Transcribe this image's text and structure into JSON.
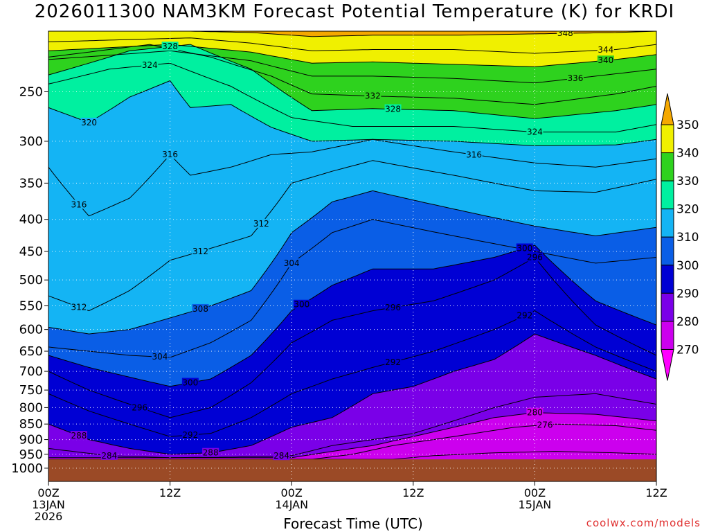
{
  "title": "2026011300 NAM3KM Forecast Potential Temperature (K) for KRDI",
  "xlabel": "Forecast Time (UTC)",
  "credit": "coolwx.com/models",
  "chart_data": {
    "type": "heatmap",
    "title": "2026011300 NAM3KM Forecast Potential Temperature (K) for KRDI",
    "xlabel": "Forecast Time (UTC)",
    "ylabel": "",
    "x_ticks": [
      {
        "hour": 0,
        "lines": [
          "00Z",
          "13JAN",
          "2026"
        ]
      },
      {
        "hour": 12,
        "lines": [
          "12Z"
        ]
      },
      {
        "hour": 24,
        "lines": [
          "00Z",
          "14JAN"
        ]
      },
      {
        "hour": 36,
        "lines": [
          "12Z"
        ]
      },
      {
        "hour": 48,
        "lines": [
          "00Z",
          "15JAN"
        ]
      },
      {
        "hour": 60,
        "lines": [
          "12Z"
        ]
      }
    ],
    "xlim": [
      0,
      60
    ],
    "y_ticks": [
      250,
      300,
      350,
      400,
      450,
      500,
      550,
      600,
      650,
      700,
      750,
      800,
      850,
      900,
      950,
      1000
    ],
    "ylim": [
      200,
      1050
    ],
    "y_scale": "log",
    "y_reversed": true,
    "grid": true,
    "colorbar": {
      "levels": [
        270,
        280,
        290,
        300,
        310,
        320,
        330,
        340,
        350
      ],
      "colors": [
        "#ff00ff",
        "#cc00ee",
        "#7a00e8",
        "#0000d4",
        "#0a5ee6",
        "#14b4f4",
        "#00f0a0",
        "#2ed21e",
        "#f0f000",
        "#f5a800"
      ]
    },
    "contour_labels": [
      "348",
      "344",
      "340",
      "336",
      "332",
      "328",
      "328",
      "324",
      "324",
      "320",
      "316",
      "316",
      "316",
      "312",
      "312",
      "312",
      "308",
      "304",
      "304",
      "300",
      "300",
      "300",
      "296",
      "296",
      "296",
      "292",
      "292",
      "292",
      "288",
      "288",
      "284",
      "284",
      "280",
      "276"
    ],
    "surface_pressure_hpa": 968,
    "series": [
      {
        "level": 348,
        "values": [
          {
            "hour": 0,
            "p": 200
          },
          {
            "hour": 14,
            "p": 200
          },
          {
            "hour": 20,
            "p": 201
          },
          {
            "hour": 26,
            "p": 204
          },
          {
            "hour": 32,
            "p": 203
          },
          {
            "hour": 40,
            "p": 203
          },
          {
            "hour": 48,
            "p": 202
          },
          {
            "hour": 56,
            "p": 201
          },
          {
            "hour": 60,
            "p": 200
          }
        ]
      },
      {
        "level": 344,
        "values": [
          {
            "hour": 0,
            "p": 208
          },
          {
            "hour": 14,
            "p": 205
          },
          {
            "hour": 20,
            "p": 209
          },
          {
            "hour": 26,
            "p": 215
          },
          {
            "hour": 32,
            "p": 214
          },
          {
            "hour": 40,
            "p": 214
          },
          {
            "hour": 48,
            "p": 217
          },
          {
            "hour": 56,
            "p": 214
          },
          {
            "hour": 60,
            "p": 210
          }
        ]
      },
      {
        "level": 340,
        "values": [
          {
            "hour": 0,
            "p": 215
          },
          {
            "hour": 12,
            "p": 210
          },
          {
            "hour": 20,
            "p": 216
          },
          {
            "hour": 26,
            "p": 225
          },
          {
            "hour": 32,
            "p": 224
          },
          {
            "hour": 40,
            "p": 226
          },
          {
            "hour": 48,
            "p": 228
          },
          {
            "hour": 56,
            "p": 222
          },
          {
            "hour": 60,
            "p": 218
          }
        ]
      },
      {
        "level": 336,
        "values": [
          {
            "hour": 0,
            "p": 222
          },
          {
            "hour": 12,
            "p": 215
          },
          {
            "hour": 20,
            "p": 223
          },
          {
            "hour": 26,
            "p": 236
          },
          {
            "hour": 32,
            "p": 236
          },
          {
            "hour": 40,
            "p": 238
          },
          {
            "hour": 48,
            "p": 242
          },
          {
            "hour": 56,
            "p": 234
          },
          {
            "hour": 60,
            "p": 230
          }
        ]
      },
      {
        "level": 332,
        "values": [
          {
            "hour": 0,
            "p": 220
          },
          {
            "hour": 10,
            "p": 210
          },
          {
            "hour": 16,
            "p": 220
          },
          {
            "hour": 22,
            "p": 236
          },
          {
            "hour": 26,
            "p": 252
          },
          {
            "hour": 32,
            "p": 254
          },
          {
            "hour": 40,
            "p": 256
          },
          {
            "hour": 48,
            "p": 262
          },
          {
            "hour": 56,
            "p": 252
          },
          {
            "hour": 60,
            "p": 245
          }
        ]
      },
      {
        "level": 328,
        "values": [
          {
            "hour": 0,
            "p": 235
          },
          {
            "hour": 8,
            "p": 215
          },
          {
            "hour": 14,
            "p": 210
          },
          {
            "hour": 20,
            "p": 230
          },
          {
            "hour": 26,
            "p": 268
          },
          {
            "hour": 32,
            "p": 266
          },
          {
            "hour": 40,
            "p": 268
          },
          {
            "hour": 48,
            "p": 276
          },
          {
            "hour": 56,
            "p": 268
          },
          {
            "hour": 60,
            "p": 262
          }
        ]
      },
      {
        "level": 324,
        "values": [
          {
            "hour": 0,
            "p": 243
          },
          {
            "hour": 6,
            "p": 230
          },
          {
            "hour": 12,
            "p": 225
          },
          {
            "hour": 18,
            "p": 245
          },
          {
            "hour": 24,
            "p": 275
          },
          {
            "hour": 30,
            "p": 284
          },
          {
            "hour": 40,
            "p": 284
          },
          {
            "hour": 48,
            "p": 290
          },
          {
            "hour": 56,
            "p": 290
          },
          {
            "hour": 60,
            "p": 282
          }
        ]
      },
      {
        "level": 320,
        "values": [
          {
            "hour": 0,
            "p": 265
          },
          {
            "hour": 4,
            "p": 280
          },
          {
            "hour": 8,
            "p": 255
          },
          {
            "hour": 12,
            "p": 240
          },
          {
            "hour": 14,
            "p": 265
          },
          {
            "hour": 18,
            "p": 262
          },
          {
            "hour": 22,
            "p": 285
          },
          {
            "hour": 26,
            "p": 300
          },
          {
            "hour": 32,
            "p": 298
          },
          {
            "hour": 40,
            "p": 300
          },
          {
            "hour": 48,
            "p": 305
          },
          {
            "hour": 56,
            "p": 304
          },
          {
            "hour": 60,
            "p": 298
          }
        ]
      },
      {
        "level": 316,
        "values": [
          {
            "hour": 0,
            "p": 330
          },
          {
            "hour": 4,
            "p": 395
          },
          {
            "hour": 8,
            "p": 370
          },
          {
            "hour": 12,
            "p": 315
          },
          {
            "hour": 14,
            "p": 340
          },
          {
            "hour": 18,
            "p": 330
          },
          {
            "hour": 22,
            "p": 315
          },
          {
            "hour": 26,
            "p": 312
          },
          {
            "hour": 32,
            "p": 298
          },
          {
            "hour": 40,
            "p": 312
          },
          {
            "hour": 48,
            "p": 325
          },
          {
            "hour": 54,
            "p": 330
          },
          {
            "hour": 60,
            "p": 320
          }
        ]
      },
      {
        "level": 312,
        "values": [
          {
            "hour": 0,
            "p": 530
          },
          {
            "hour": 4,
            "p": 560
          },
          {
            "hour": 8,
            "p": 520
          },
          {
            "hour": 12,
            "p": 465
          },
          {
            "hour": 16,
            "p": 445
          },
          {
            "hour": 20,
            "p": 425
          },
          {
            "hour": 24,
            "p": 350
          },
          {
            "hour": 28,
            "p": 335
          },
          {
            "hour": 32,
            "p": 322
          },
          {
            "hour": 40,
            "p": 340
          },
          {
            "hour": 48,
            "p": 360
          },
          {
            "hour": 54,
            "p": 362
          },
          {
            "hour": 60,
            "p": 345
          }
        ]
      },
      {
        "level": 308,
        "values": [
          {
            "hour": 0,
            "p": 595
          },
          {
            "hour": 4,
            "p": 610
          },
          {
            "hour": 8,
            "p": 600
          },
          {
            "hour": 12,
            "p": 575
          },
          {
            "hour": 16,
            "p": 550
          },
          {
            "hour": 20,
            "p": 520
          },
          {
            "hour": 24,
            "p": 420
          },
          {
            "hour": 28,
            "p": 375
          },
          {
            "hour": 32,
            "p": 360
          },
          {
            "hour": 40,
            "p": 385
          },
          {
            "hour": 48,
            "p": 410
          },
          {
            "hour": 54,
            "p": 425
          },
          {
            "hour": 60,
            "p": 412
          }
        ]
      },
      {
        "level": 304,
        "values": [
          {
            "hour": 0,
            "p": 640
          },
          {
            "hour": 4,
            "p": 650
          },
          {
            "hour": 8,
            "p": 660
          },
          {
            "hour": 12,
            "p": 665
          },
          {
            "hour": 16,
            "p": 630
          },
          {
            "hour": 20,
            "p": 580
          },
          {
            "hour": 24,
            "p": 470
          },
          {
            "hour": 28,
            "p": 420
          },
          {
            "hour": 32,
            "p": 400
          },
          {
            "hour": 40,
            "p": 425
          },
          {
            "hour": 48,
            "p": 450
          },
          {
            "hour": 54,
            "p": 470
          },
          {
            "hour": 60,
            "p": 460
          }
        ]
      },
      {
        "level": 300,
        "values": [
          {
            "hour": 0,
            "p": 660
          },
          {
            "hour": 4,
            "p": 690
          },
          {
            "hour": 8,
            "p": 715
          },
          {
            "hour": 12,
            "p": 740
          },
          {
            "hour": 16,
            "p": 720
          },
          {
            "hour": 20,
            "p": 660
          },
          {
            "hour": 24,
            "p": 560
          },
          {
            "hour": 28,
            "p": 510
          },
          {
            "hour": 32,
            "p": 480
          },
          {
            "hour": 38,
            "p": 480
          },
          {
            "hour": 44,
            "p": 460
          },
          {
            "hour": 48,
            "p": 440
          },
          {
            "hour": 54,
            "p": 540
          },
          {
            "hour": 60,
            "p": 590
          }
        ]
      },
      {
        "level": 296,
        "values": [
          {
            "hour": 0,
            "p": 700
          },
          {
            "hour": 4,
            "p": 750
          },
          {
            "hour": 8,
            "p": 790
          },
          {
            "hour": 12,
            "p": 830
          },
          {
            "hour": 16,
            "p": 800
          },
          {
            "hour": 20,
            "p": 730
          },
          {
            "hour": 24,
            "p": 630
          },
          {
            "hour": 28,
            "p": 580
          },
          {
            "hour": 32,
            "p": 560
          },
          {
            "hour": 38,
            "p": 540
          },
          {
            "hour": 44,
            "p": 500
          },
          {
            "hour": 48,
            "p": 460
          },
          {
            "hour": 54,
            "p": 590
          },
          {
            "hour": 60,
            "p": 660
          }
        ]
      },
      {
        "level": 292,
        "values": [
          {
            "hour": 0,
            "p": 760
          },
          {
            "hour": 4,
            "p": 810
          },
          {
            "hour": 8,
            "p": 850
          },
          {
            "hour": 12,
            "p": 890
          },
          {
            "hour": 16,
            "p": 880
          },
          {
            "hour": 20,
            "p": 830
          },
          {
            "hour": 24,
            "p": 760
          },
          {
            "hour": 28,
            "p": 720
          },
          {
            "hour": 32,
            "p": 690
          },
          {
            "hour": 38,
            "p": 650
          },
          {
            "hour": 44,
            "p": 600
          },
          {
            "hour": 48,
            "p": 560
          },
          {
            "hour": 54,
            "p": 640
          },
          {
            "hour": 60,
            "p": 700
          }
        ]
      },
      {
        "level": 288,
        "values": [
          {
            "hour": 0,
            "p": 850
          },
          {
            "hour": 4,
            "p": 900
          },
          {
            "hour": 8,
            "p": 930
          },
          {
            "hour": 12,
            "p": 950
          },
          {
            "hour": 16,
            "p": 945
          },
          {
            "hour": 20,
            "p": 920
          },
          {
            "hour": 24,
            "p": 860
          },
          {
            "hour": 28,
            "p": 830
          },
          {
            "hour": 32,
            "p": 760
          },
          {
            "hour": 36,
            "p": 740
          },
          {
            "hour": 40,
            "p": 700
          },
          {
            "hour": 44,
            "p": 670
          },
          {
            "hour": 48,
            "p": 610
          },
          {
            "hour": 54,
            "p": 660
          },
          {
            "hour": 60,
            "p": 720
          }
        ]
      },
      {
        "level": 284,
        "values": [
          {
            "hour": 0,
            "p": 930
          },
          {
            "hour": 6,
            "p": 955
          },
          {
            "hour": 12,
            "p": 962
          },
          {
            "hour": 18,
            "p": 960
          },
          {
            "hour": 24,
            "p": 955
          },
          {
            "hour": 28,
            "p": 920
          },
          {
            "hour": 32,
            "p": 900
          },
          {
            "hour": 36,
            "p": 880
          },
          {
            "hour": 40,
            "p": 840
          },
          {
            "hour": 44,
            "p": 800
          },
          {
            "hour": 48,
            "p": 770
          },
          {
            "hour": 54,
            "p": 760
          },
          {
            "hour": 60,
            "p": 790
          }
        ]
      },
      {
        "level": 280,
        "values": [
          {
            "hour": 0,
            "p": 962
          },
          {
            "hour": 24,
            "p": 962
          },
          {
            "hour": 28,
            "p": 940
          },
          {
            "hour": 32,
            "p": 920
          },
          {
            "hour": 36,
            "p": 890
          },
          {
            "hour": 40,
            "p": 860
          },
          {
            "hour": 44,
            "p": 830
          },
          {
            "hour": 48,
            "p": 815
          },
          {
            "hour": 54,
            "p": 820
          },
          {
            "hour": 60,
            "p": 840
          }
        ]
      },
      {
        "level": 276,
        "values": [
          {
            "hour": 0,
            "p": 968
          },
          {
            "hour": 26,
            "p": 968
          },
          {
            "hour": 30,
            "p": 950
          },
          {
            "hour": 34,
            "p": 920
          },
          {
            "hour": 40,
            "p": 890
          },
          {
            "hour": 46,
            "p": 860
          },
          {
            "hour": 50,
            "p": 850
          },
          {
            "hour": 56,
            "p": 855
          },
          {
            "hour": 60,
            "p": 870
          }
        ]
      },
      {
        "level": 272,
        "values": [
          {
            "hour": 0,
            "p": 968
          },
          {
            "hour": 34,
            "p": 968
          },
          {
            "hour": 38,
            "p": 955
          },
          {
            "hour": 44,
            "p": 945
          },
          {
            "hour": 50,
            "p": 940
          },
          {
            "hour": 56,
            "p": 945
          },
          {
            "hour": 60,
            "p": 950
          }
        ]
      }
    ]
  }
}
